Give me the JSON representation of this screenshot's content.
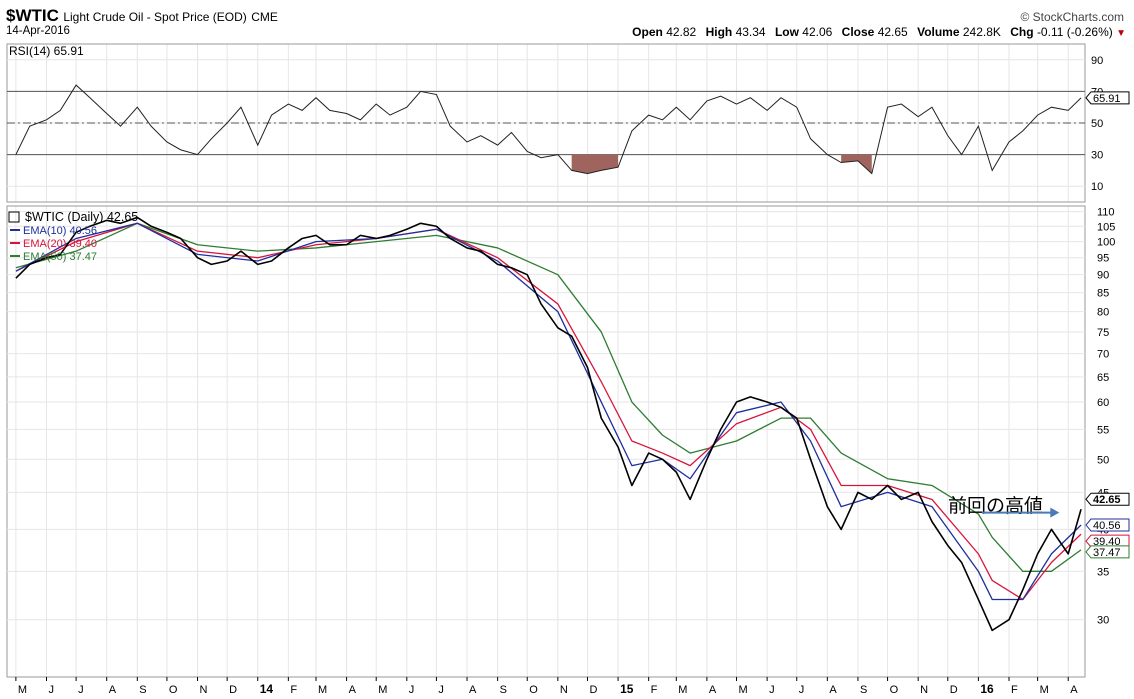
{
  "header": {
    "symbol": "$WTIC",
    "description": "Light Crude Oil - Spot Price (EOD)",
    "exchange": "CME",
    "date": "14-Apr-2016",
    "brand": "© StockCharts.com",
    "open_label": "Open",
    "open": "42.82",
    "high_label": "High",
    "high": "43.34",
    "low_label": "Low",
    "low": "42.06",
    "close_label": "Close",
    "close": "42.65",
    "volume_label": "Volume",
    "volume": "242.8K",
    "chg_label": "Chg",
    "chg": "-0.11 (-0.26%)",
    "chg_arrow": "▼"
  },
  "colors": {
    "price": "#000000",
    "ema10": "#1f2f9e",
    "ema20": "#d8143c",
    "ema50": "#2e7d32",
    "oversold_fill": "#a0645f",
    "grid": "#e6e6e6",
    "annotation_arrow": "#4a7ab8"
  },
  "chart_data": [
    {
      "type": "line",
      "title": "RSI(14) 65.91",
      "series": [
        {
          "name": "RSI(14)",
          "x": [
            "2013-05-01",
            "2013-05-15",
            "2013-06-01",
            "2013-06-15",
            "2013-07-01",
            "2013-07-15",
            "2013-08-01",
            "2013-08-15",
            "2013-09-01",
            "2013-09-15",
            "2013-10-01",
            "2013-10-15",
            "2013-11-01",
            "2013-11-15",
            "2013-12-01",
            "2013-12-15",
            "2014-01-01",
            "2014-01-15",
            "2014-02-01",
            "2014-02-15",
            "2014-03-01",
            "2014-03-15",
            "2014-04-01",
            "2014-04-15",
            "2014-05-01",
            "2014-05-15",
            "2014-06-01",
            "2014-06-15",
            "2014-07-01",
            "2014-07-15",
            "2014-08-01",
            "2014-08-15",
            "2014-09-01",
            "2014-09-15",
            "2014-10-01",
            "2014-10-15",
            "2014-11-01",
            "2014-11-15",
            "2014-12-01",
            "2014-12-15",
            "2015-01-01",
            "2015-01-15",
            "2015-02-01",
            "2015-02-15",
            "2015-03-01",
            "2015-03-15",
            "2015-04-01",
            "2015-04-15",
            "2015-05-01",
            "2015-05-15",
            "2015-06-01",
            "2015-06-15",
            "2015-07-01",
            "2015-07-15",
            "2015-08-01",
            "2015-08-15",
            "2015-09-01",
            "2015-09-15",
            "2015-10-01",
            "2015-10-15",
            "2015-11-01",
            "2015-11-15",
            "2015-12-01",
            "2015-12-15",
            "2016-01-01",
            "2016-01-15",
            "2016-02-01",
            "2016-02-15",
            "2016-03-01",
            "2016-03-15",
            "2016-04-01",
            "2016-04-14"
          ],
          "values": [
            30,
            48,
            52,
            58,
            74,
            66,
            56,
            48,
            60,
            48,
            38,
            33,
            30,
            40,
            50,
            60,
            36,
            55,
            62,
            58,
            66,
            58,
            56,
            52,
            62,
            55,
            60,
            70,
            68,
            48,
            38,
            42,
            36,
            44,
            32,
            28,
            30,
            20,
            18,
            20,
            22,
            45,
            55,
            52,
            60,
            52,
            64,
            67,
            62,
            66,
            58,
            66,
            60,
            40,
            30,
            25,
            26,
            18,
            60,
            62,
            54,
            60,
            42,
            30,
            48,
            20,
            38,
            45,
            55,
            60,
            58,
            65.91
          ]
        }
      ],
      "y_ticks": [
        10,
        30,
        50,
        70,
        90
      ],
      "reference_lines": [
        30,
        50,
        70
      ],
      "ylim": [
        0,
        100
      ],
      "marker_label": "65.91"
    },
    {
      "type": "line",
      "title": "$WTIC (Daily) 42.65",
      "scale": "log",
      "legend": [
        "EMA(10) 40.56",
        "EMA(20) 39.40",
        "EMA(50) 37.47"
      ],
      "legend_position": "top-left",
      "x_ticks": [
        "M",
        "J",
        "J",
        "A",
        "S",
        "O",
        "N",
        "D",
        "14",
        "F",
        "M",
        "A",
        "M",
        "J",
        "J",
        "A",
        "S",
        "O",
        "N",
        "D",
        "15",
        "F",
        "M",
        "A",
        "M",
        "J",
        "J",
        "A",
        "S",
        "O",
        "N",
        "D",
        "16",
        "F",
        "M",
        "A"
      ],
      "y_ticks": [
        30,
        35,
        40,
        45,
        50,
        55,
        60,
        65,
        70,
        75,
        80,
        85,
        90,
        95,
        100,
        105,
        110
      ],
      "ylim": [
        25,
        112
      ],
      "last_value_labels": [
        "42.65",
        "40.56",
        "39.40",
        "37.47"
      ],
      "annotation": "前回の高値",
      "series": [
        {
          "name": "$WTIC",
          "x": [
            "2013-05-01",
            "2013-05-15",
            "2013-06-01",
            "2013-06-15",
            "2013-07-01",
            "2013-07-15",
            "2013-08-01",
            "2013-08-15",
            "2013-09-01",
            "2013-09-15",
            "2013-10-01",
            "2013-10-15",
            "2013-11-01",
            "2013-11-15",
            "2013-12-01",
            "2013-12-15",
            "2014-01-01",
            "2014-01-15",
            "2014-02-01",
            "2014-02-15",
            "2014-03-01",
            "2014-03-15",
            "2014-04-01",
            "2014-04-15",
            "2014-05-01",
            "2014-05-15",
            "2014-06-01",
            "2014-06-15",
            "2014-07-01",
            "2014-07-15",
            "2014-08-01",
            "2014-08-15",
            "2014-09-01",
            "2014-09-15",
            "2014-10-01",
            "2014-10-15",
            "2014-11-01",
            "2014-11-15",
            "2014-12-01",
            "2014-12-15",
            "2015-01-01",
            "2015-01-15",
            "2015-02-01",
            "2015-02-15",
            "2015-03-01",
            "2015-03-15",
            "2015-04-01",
            "2015-04-15",
            "2015-05-01",
            "2015-05-15",
            "2015-06-01",
            "2015-06-15",
            "2015-07-01",
            "2015-07-15",
            "2015-08-01",
            "2015-08-15",
            "2015-09-01",
            "2015-09-15",
            "2015-10-01",
            "2015-10-15",
            "2015-11-01",
            "2015-11-15",
            "2015-12-01",
            "2015-12-15",
            "2016-01-01",
            "2016-01-15",
            "2016-02-01",
            "2016-02-15",
            "2016-03-01",
            "2016-03-15",
            "2016-04-01",
            "2016-04-14"
          ],
          "values": [
            89,
            93,
            95,
            96,
            103,
            105,
            107,
            106,
            108,
            105,
            103,
            101,
            95,
            93,
            94,
            97,
            93,
            94,
            98,
            101,
            102,
            99,
            99,
            102,
            101,
            102,
            104,
            106,
            105,
            101,
            98,
            97,
            93,
            92,
            90,
            82,
            76,
            74,
            67,
            57,
            52,
            46,
            51,
            50,
            48,
            44,
            50,
            55,
            60,
            61,
            60,
            59,
            57,
            50,
            43,
            40,
            45,
            44,
            46,
            44,
            45,
            41,
            38,
            36,
            32,
            29,
            30,
            33,
            37,
            40,
            37,
            42.65
          ]
        },
        {
          "name": "EMA(10)",
          "x": [
            "2013-05-01",
            "2013-07-01",
            "2013-09-01",
            "2013-11-01",
            "2014-01-01",
            "2014-03-01",
            "2014-05-01",
            "2014-07-01",
            "2014-09-01",
            "2014-11-01",
            "2014-12-15",
            "2015-01-15",
            "2015-02-15",
            "2015-03-15",
            "2015-05-01",
            "2015-06-15",
            "2015-07-15",
            "2015-08-15",
            "2015-10-01",
            "2015-11-15",
            "2016-01-01",
            "2016-01-15",
            "2016-02-15",
            "2016-03-15",
            "2016-04-14"
          ],
          "values": [
            91,
            101,
            106,
            96,
            94,
            100,
            101,
            104,
            94,
            80,
            60,
            49,
            50,
            47,
            58,
            60,
            53,
            43,
            45,
            43,
            35,
            32,
            32,
            37,
            40.56
          ]
        },
        {
          "name": "EMA(20)",
          "x": [
            "2013-05-01",
            "2013-07-01",
            "2013-09-01",
            "2013-11-01",
            "2014-01-01",
            "2014-03-01",
            "2014-05-01",
            "2014-07-01",
            "2014-09-01",
            "2014-11-01",
            "2014-12-15",
            "2015-01-15",
            "2015-02-15",
            "2015-03-15",
            "2015-05-01",
            "2015-06-15",
            "2015-07-15",
            "2015-08-15",
            "2015-10-01",
            "2015-11-15",
            "2016-01-01",
            "2016-01-15",
            "2016-02-15",
            "2016-03-15",
            "2016-04-14"
          ],
          "values": [
            91,
            100,
            106,
            97,
            95,
            99,
            101,
            104,
            95,
            82,
            64,
            53,
            51,
            49,
            56,
            59,
            55,
            46,
            46,
            44,
            37,
            34,
            32,
            36,
            39.4
          ]
        },
        {
          "name": "EMA(50)",
          "x": [
            "2013-05-01",
            "2013-07-01",
            "2013-09-01",
            "2013-11-01",
            "2014-01-01",
            "2014-03-01",
            "2014-05-01",
            "2014-07-01",
            "2014-09-01",
            "2014-11-01",
            "2014-12-15",
            "2015-01-15",
            "2015-02-15",
            "2015-03-15",
            "2015-05-01",
            "2015-06-15",
            "2015-07-15",
            "2015-08-15",
            "2015-10-01",
            "2015-11-15",
            "2016-01-01",
            "2016-01-15",
            "2016-02-15",
            "2016-03-15",
            "2016-04-14"
          ],
          "values": [
            92,
            97,
            106,
            99,
            97,
            98,
            100,
            102,
            98,
            90,
            75,
            60,
            54,
            51,
            53,
            57,
            57,
            51,
            47,
            46,
            42,
            39,
            35,
            35,
            37.47
          ]
        }
      ]
    }
  ]
}
